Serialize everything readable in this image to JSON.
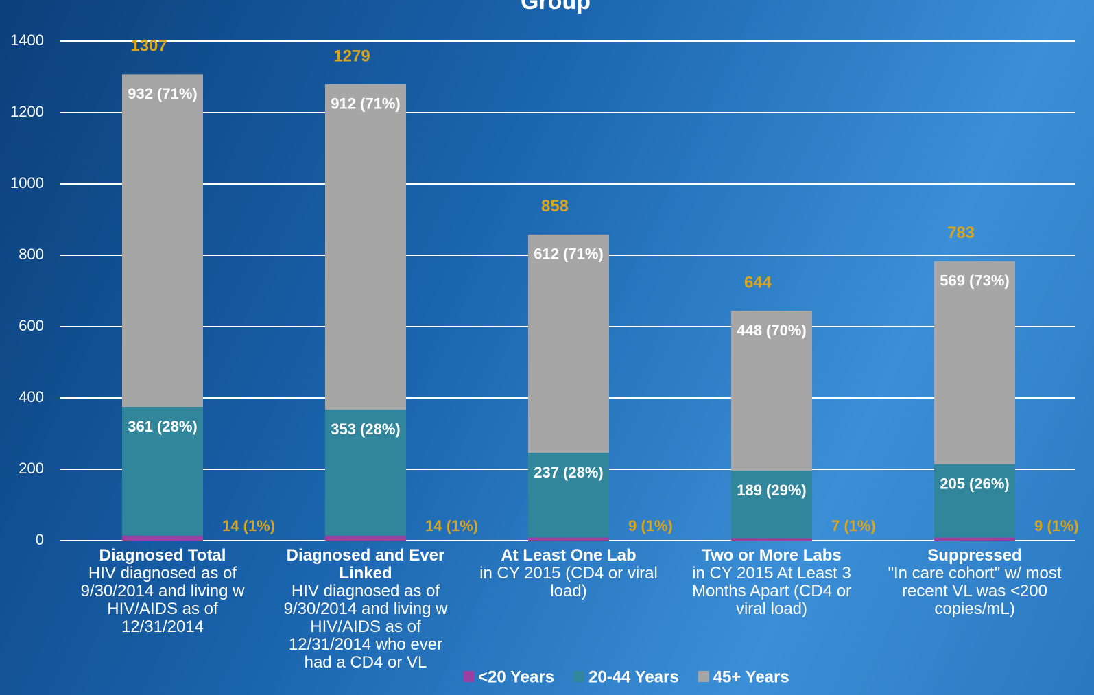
{
  "chart_data": {
    "type": "stacked_bar",
    "title": "Group",
    "categories": [
      "Diagnosed Total",
      "Diagnosed and Ever Linked",
      "At Least One Lab",
      "Two or More Labs",
      "Suppressed"
    ],
    "category_descriptions": [
      "HIV diagnosed as of 9/30/2014 and living w HIV/AIDS as of 12/31/2014",
      "HIV diagnosed as of 9/30/2014 and living w HIV/AIDS as of 12/31/2014 who ever had a CD4 or VL",
      "in CY 2015 (CD4 or viral load)",
      "in CY 2015 At Least 3 Months Apart (CD4 or viral load)",
      "\"In care cohort\" w/ most recent VL was <200 copies/mL)"
    ],
    "series": [
      {
        "name": "<20 Years",
        "color": "#9b3fa3",
        "values": [
          14,
          14,
          9,
          7,
          9
        ],
        "value_labels": [
          "14 (1%)",
          "14 (1%)",
          "9 (1%)",
          "7 (1%)",
          "9 (1%)"
        ]
      },
      {
        "name": "20-44 Years",
        "color": "#31869b",
        "values": [
          361,
          353,
          237,
          189,
          205
        ],
        "value_labels": [
          "361 (28%)",
          "353 (28%)",
          "237 (28%)",
          "189 (29%)",
          "205 (26%)"
        ]
      },
      {
        "name": "45+ Years",
        "color": "#a6a6a6",
        "values": [
          932,
          912,
          612,
          448,
          569
        ],
        "value_labels": [
          "932 (71%)",
          "912 (71%)",
          "612 (71%)",
          "448 (70%)",
          "569 (73%)"
        ]
      }
    ],
    "totals": [
      1307,
      1279,
      858,
      644,
      783
    ],
    "ylim": [
      0,
      1400
    ],
    "yticks": [
      0,
      200,
      400,
      600,
      800,
      1000,
      1200,
      1400
    ],
    "grid": true
  }
}
